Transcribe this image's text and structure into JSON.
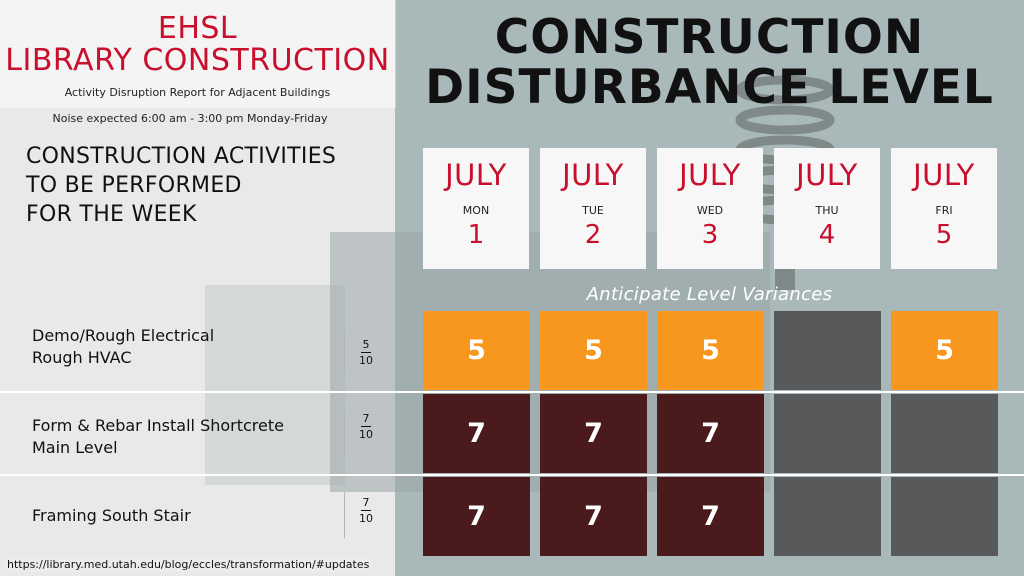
{
  "header": {
    "line1": "EHSL",
    "line2": "LIBRARY CONSTRUCTION",
    "subtitle": "Activity Disruption Report for Adjacent Buildings",
    "noise": "Noise expected 6:00 am - 3:00 pm Monday-Friday"
  },
  "activities_title": [
    "CONSTRUCTION ACTIVITIES",
    "TO BE PERFORMED",
    "FOR THE WEEK"
  ],
  "main_title": [
    "CONSTRUCTION",
    "DISTURBANCE LEVEL"
  ],
  "days": [
    {
      "month": "JULY",
      "day": "MON",
      "num": "1"
    },
    {
      "month": "JULY",
      "day": "TUE",
      "num": "2"
    },
    {
      "month": "JULY",
      "day": "WED",
      "num": "3"
    },
    {
      "month": "JULY",
      "day": "THU",
      "num": "4"
    },
    {
      "month": "JULY",
      "day": "FRI",
      "num": "5"
    }
  ],
  "variance_note": "Anticipate Level Variances",
  "rows": [
    {
      "label": [
        "Demo/Rough Electrical",
        "Rough HVAC"
      ],
      "level": "5",
      "out_of": "10",
      "cells": [
        "5",
        "5",
        "5",
        "",
        "5"
      ],
      "styles": [
        "orange",
        "orange",
        "orange",
        "gray",
        "orange"
      ]
    },
    {
      "label": [
        "Form & Rebar Install Shortcrete",
        "Main Level"
      ],
      "level": "7",
      "out_of": "10",
      "cells": [
        "7",
        "7",
        "7",
        "",
        ""
      ],
      "styles": [
        "maroon",
        "maroon",
        "maroon",
        "gray",
        "gray"
      ]
    },
    {
      "label": [
        "Framing South Stair"
      ],
      "level": "7",
      "out_of": "10",
      "cells": [
        "7",
        "7",
        "7",
        "",
        ""
      ],
      "styles": [
        "maroon",
        "maroon",
        "maroon",
        "gray",
        "gray"
      ]
    }
  ],
  "footer_url": "https://library.med.utah.edu/blog/eccles/transformation/#updates",
  "colors": {
    "red": "#c8102e",
    "orange": "#f7971e",
    "maroon": "#4a1a1c",
    "gray": "#58595b",
    "background": "#a9b8b9"
  }
}
